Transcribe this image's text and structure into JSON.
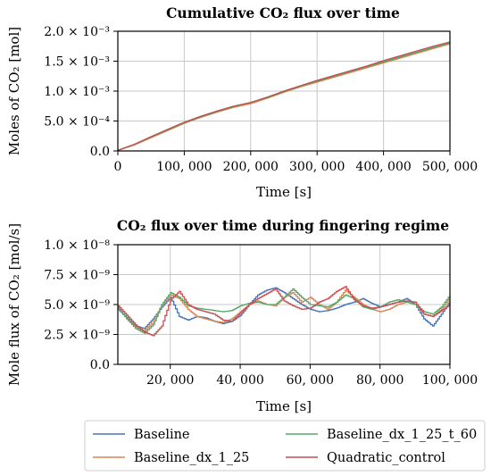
{
  "chart_data": [
    {
      "type": "line",
      "title": "Cumulative CO₂ flux over time",
      "xlabel": "Time [s]",
      "ylabel": "Moles of CO₂ [mol]",
      "xlim": [
        0,
        500000
      ],
      "ylim": [
        0,
        0.002
      ],
      "x_ticks": [
        0,
        100000,
        200000,
        300000,
        400000,
        500000
      ],
      "x_tick_labels": [
        "0",
        "100, 000",
        "200, 000",
        "300, 000",
        "400, 000",
        "500, 000"
      ],
      "y_ticks": [
        0,
        0.0005,
        0.001,
        0.0015,
        0.002
      ],
      "y_tick_labels": [
        "0.0",
        "5.0 × 10⁻⁴",
        "1.0 × 10⁻³",
        "1.5 × 10⁻³",
        "2.0 × 10⁻³"
      ],
      "grid": true,
      "x": [
        0,
        25000,
        50000,
        75000,
        100000,
        125000,
        150000,
        175000,
        200000,
        225000,
        250000,
        275000,
        300000,
        325000,
        350000,
        375000,
        400000,
        425000,
        450000,
        475000,
        500000
      ],
      "series": [
        {
          "name": "Baseline",
          "color": "#4c72b0",
          "values": [
            1e-05,
            0.00011,
            0.00023,
            0.00035,
            0.00047,
            0.00057,
            0.00066,
            0.00074,
            0.0008,
            0.00089,
            0.00099,
            0.00108,
            0.00116,
            0.00124,
            0.00132,
            0.0014,
            0.00148,
            0.00156,
            0.00164,
            0.00172,
            0.0018
          ]
        },
        {
          "name": "Baseline_dx_1_25",
          "color": "#dd8452",
          "values": [
            1e-05,
            0.0001,
            0.00022,
            0.00034,
            0.00046,
            0.00056,
            0.00065,
            0.00073,
            0.00079,
            0.00088,
            0.00098,
            0.00107,
            0.00115,
            0.00123,
            0.00131,
            0.00139,
            0.00147,
            0.00155,
            0.00163,
            0.00171,
            0.00179
          ]
        },
        {
          "name": "Baseline_dx_1_25_t_60",
          "color": "#55a868",
          "values": [
            1e-05,
            0.00011,
            0.00023,
            0.00035,
            0.00047,
            0.00057,
            0.00066,
            0.00074,
            0.00081,
            0.00089,
            0.00099,
            0.00108,
            0.00117,
            0.00125,
            0.00133,
            0.00141,
            0.00149,
            0.00157,
            0.00165,
            0.00173,
            0.0018
          ]
        },
        {
          "name": "Quadratic_control",
          "color": "#c44e52",
          "values": [
            1e-05,
            0.00011,
            0.00024,
            0.00036,
            0.00048,
            0.00058,
            0.00067,
            0.00075,
            0.00081,
            0.0009,
            0.001,
            0.00109,
            0.00118,
            0.00126,
            0.00134,
            0.00142,
            0.00151,
            0.00159,
            0.00167,
            0.00175,
            0.00182
          ]
        }
      ]
    },
    {
      "type": "line",
      "title": "CO₂ flux over time during fingering regime",
      "xlabel": "Time [s]",
      "ylabel": "Mole flux of CO₂ [mol/s]",
      "xlim": [
        5000,
        100000
      ],
      "ylim": [
        0,
        1e-08
      ],
      "x_ticks": [
        20000,
        40000,
        60000,
        80000,
        100000
      ],
      "x_tick_labels": [
        "20, 000",
        "40, 000",
        "60, 000",
        "80, 000",
        "100, 000"
      ],
      "y_ticks": [
        0,
        2.5e-09,
        5e-09,
        7.5e-09,
        1e-08
      ],
      "y_tick_labels": [
        "0.0",
        "2.5 × 10⁻⁹",
        "5.0 × 10⁻⁹",
        "7.5 × 10⁻⁹",
        "1.0 × 10⁻⁸"
      ],
      "grid": true,
      "x": [
        5000,
        7500,
        10000,
        12500,
        15000,
        17500,
        20000,
        22500,
        25000,
        27500,
        30000,
        32500,
        35000,
        37500,
        40000,
        42500,
        45000,
        47500,
        50000,
        52500,
        55000,
        57500,
        60000,
        62500,
        65000,
        67500,
        70000,
        72500,
        75000,
        77500,
        80000,
        82500,
        85000,
        87500,
        90000,
        92500,
        95000,
        97500,
        100000
      ],
      "series": [
        {
          "name": "Baseline",
          "color": "#4c72b0",
          "values": [
            4.6e-09,
            3.9e-09,
            3.2e-09,
            3e-09,
            3.8e-09,
            4.8e-09,
            5.6e-09,
            4e-09,
            3.7e-09,
            4e-09,
            3.9e-09,
            3.6e-09,
            3.4e-09,
            3.6e-09,
            4.1e-09,
            5e-09,
            5.8e-09,
            6.2e-09,
            6.4e-09,
            6e-09,
            5.5e-09,
            5e-09,
            4.6e-09,
            4.4e-09,
            4.5e-09,
            4.7e-09,
            5e-09,
            5.2e-09,
            5.5e-09,
            5.1e-09,
            4.8e-09,
            5e-09,
            5.2e-09,
            5.5e-09,
            5e-09,
            3.8e-09,
            3.2e-09,
            4.2e-09,
            5.3e-09
          ]
        },
        {
          "name": "Baseline_dx_1_25",
          "color": "#dd8452",
          "values": [
            4.8e-09,
            3.8e-09,
            3.1e-09,
            2.8e-09,
            3.5e-09,
            5e-09,
            5.8e-09,
            5.5e-09,
            4.6e-09,
            4e-09,
            3.8e-09,
            3.6e-09,
            3.5e-09,
            3.8e-09,
            4.4e-09,
            5e-09,
            5.3e-09,
            5e-09,
            4.9e-09,
            5.6e-09,
            6e-09,
            5.2e-09,
            5.6e-09,
            5e-09,
            4.6e-09,
            5.2e-09,
            6.2e-09,
            5.6e-09,
            5e-09,
            4.6e-09,
            4.4e-09,
            4.6e-09,
            5e-09,
            5.2e-09,
            5e-09,
            4.2e-09,
            4e-09,
            4.6e-09,
            5.6e-09
          ]
        },
        {
          "name": "Baseline_dx_1_25_t_60",
          "color": "#55a868",
          "values": [
            4.7e-09,
            3.8e-09,
            3e-09,
            2.6e-09,
            3.3e-09,
            5e-09,
            6e-09,
            5.6e-09,
            4.9e-09,
            4.7e-09,
            4.6e-09,
            4.5e-09,
            4.4e-09,
            4.5e-09,
            4.9e-09,
            5.1e-09,
            5.2e-09,
            5e-09,
            5e-09,
            5.6e-09,
            6.3e-09,
            5.6e-09,
            5e-09,
            4.9e-09,
            4.8e-09,
            5.2e-09,
            5.8e-09,
            5.5e-09,
            4.8e-09,
            4.6e-09,
            4.8e-09,
            5.2e-09,
            5.4e-09,
            5.2e-09,
            5e-09,
            4.4e-09,
            4.2e-09,
            4.8e-09,
            5.8e-09
          ]
        },
        {
          "name": "Quadratic_control",
          "color": "#c44e52",
          "values": [
            4.9e-09,
            4.1e-09,
            3.3e-09,
            2.7e-09,
            2.4e-09,
            3.2e-09,
            5.4e-09,
            6.1e-09,
            5e-09,
            4.6e-09,
            4.4e-09,
            4.2e-09,
            3.7e-09,
            3.6e-09,
            4.3e-09,
            5e-09,
            5.5e-09,
            5.9e-09,
            6.3e-09,
            5.3e-09,
            4.9e-09,
            4.6e-09,
            4.7e-09,
            5.2e-09,
            5.5e-09,
            6.1e-09,
            6.5e-09,
            5.4e-09,
            4.9e-09,
            4.7e-09,
            4.8e-09,
            5e-09,
            5.2e-09,
            5.3e-09,
            5.2e-09,
            4.2e-09,
            4e-09,
            4.5e-09,
            5e-09
          ]
        }
      ]
    }
  ],
  "legend": {
    "placement": "bottom-center",
    "entries": [
      {
        "label": "Baseline",
        "color": "#4c72b0"
      },
      {
        "label": "Baseline_dx_1_25_t_60",
        "color": "#55a868"
      },
      {
        "label": "Baseline_dx_1_25",
        "color": "#dd8452"
      },
      {
        "label": "Quadratic_control",
        "color": "#c44e52"
      }
    ]
  }
}
